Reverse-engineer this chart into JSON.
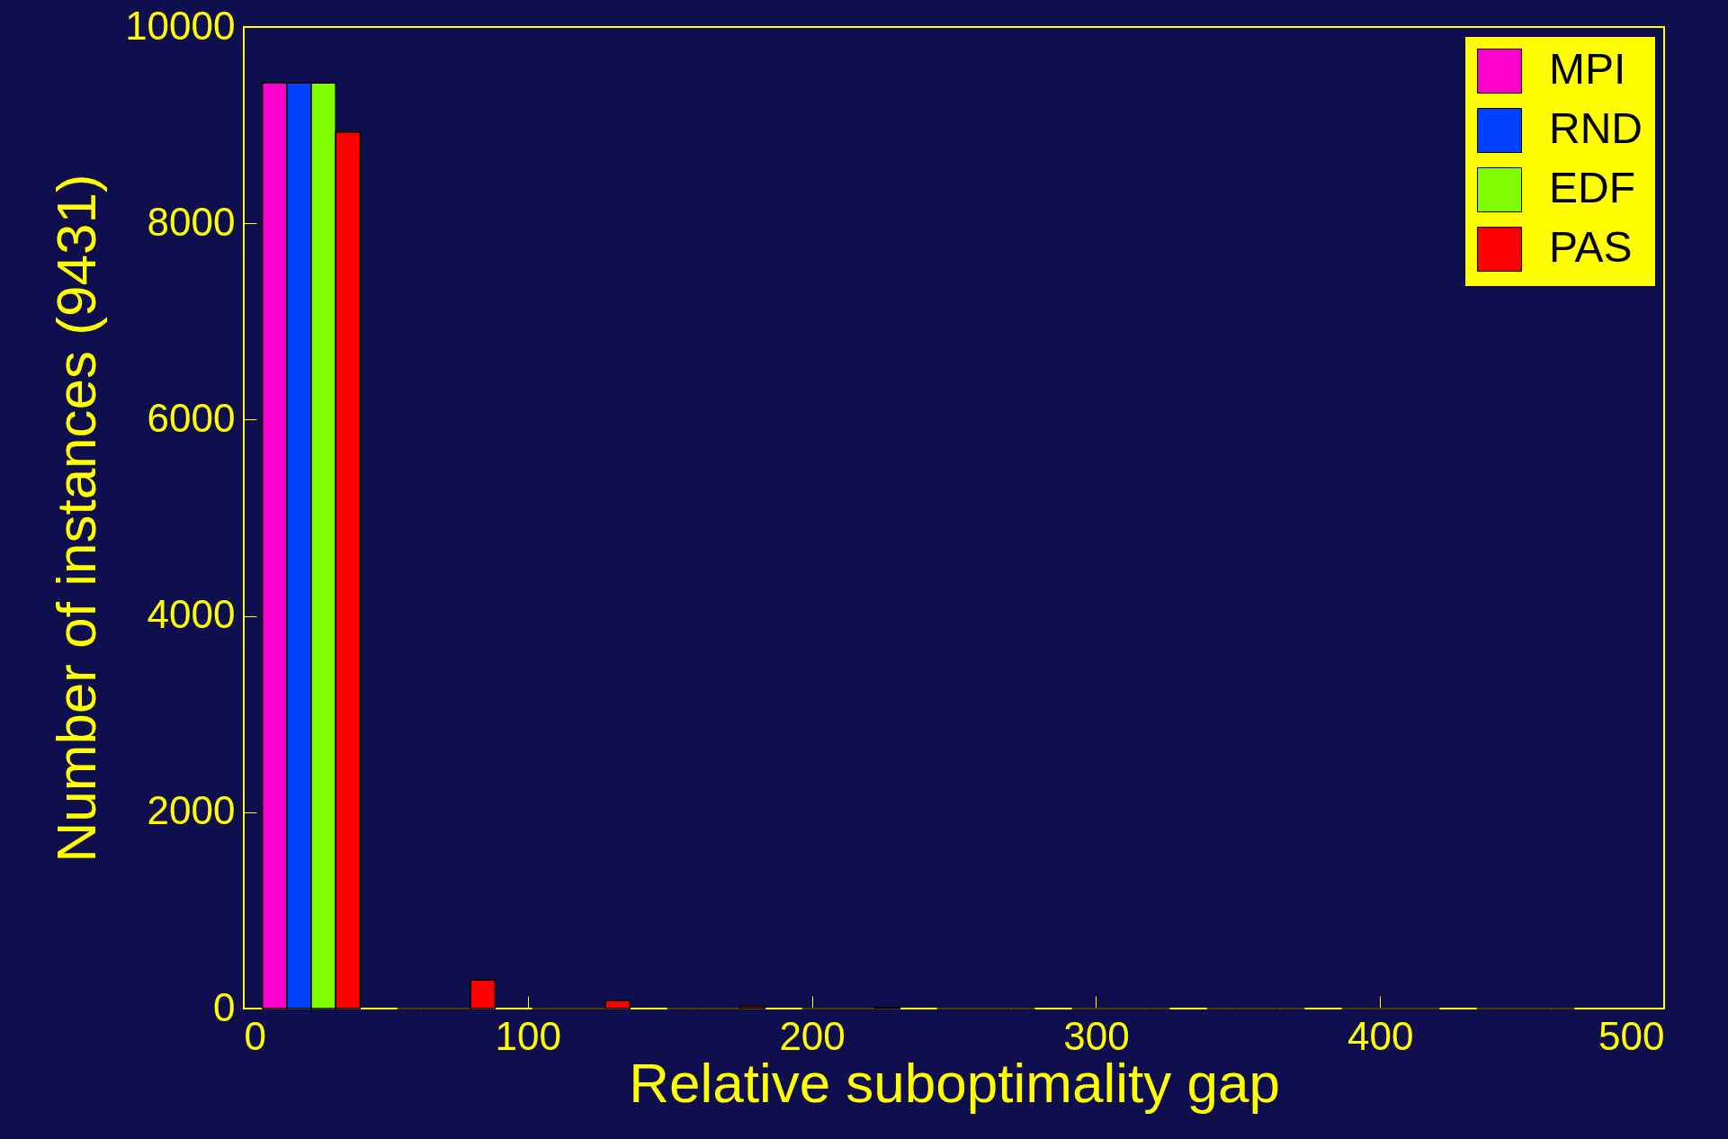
{
  "chart_data": {
    "type": "histogram",
    "xlabel": "Relative suboptimality gap",
    "ylabel": "Number of instances (9431)",
    "bins": [
      0,
      47.5,
      95,
      142.5,
      190,
      237.5,
      285,
      332.5,
      380,
      427.5,
      475
    ],
    "series": [
      {
        "name": "MPI",
        "color": "#ff00cc",
        "values": [
          9430,
          0,
          0,
          0,
          0,
          0,
          0,
          0,
          0,
          0
        ]
      },
      {
        "name": "RND",
        "color": "#0040ff",
        "values": [
          9430,
          0,
          0,
          0,
          0,
          0,
          0,
          0,
          0,
          0
        ]
      },
      {
        "name": "EDF",
        "color": "#80ff00",
        "values": [
          9430,
          0,
          0,
          0,
          0,
          0,
          0,
          0,
          0,
          0
        ]
      },
      {
        "name": "PAS",
        "color": "#ff0000",
        "values": [
          8930,
          290,
          80,
          20,
          10,
          0,
          0,
          0,
          0,
          0
        ]
      }
    ],
    "xlim": [
      0,
      500
    ],
    "xticks": [
      0,
      100,
      200,
      300,
      400,
      500
    ],
    "ylim": [
      0,
      10000
    ],
    "yticks": [
      0,
      2000,
      4000,
      6000,
      8000,
      10000
    ],
    "legend": "top right",
    "grid": false
  }
}
